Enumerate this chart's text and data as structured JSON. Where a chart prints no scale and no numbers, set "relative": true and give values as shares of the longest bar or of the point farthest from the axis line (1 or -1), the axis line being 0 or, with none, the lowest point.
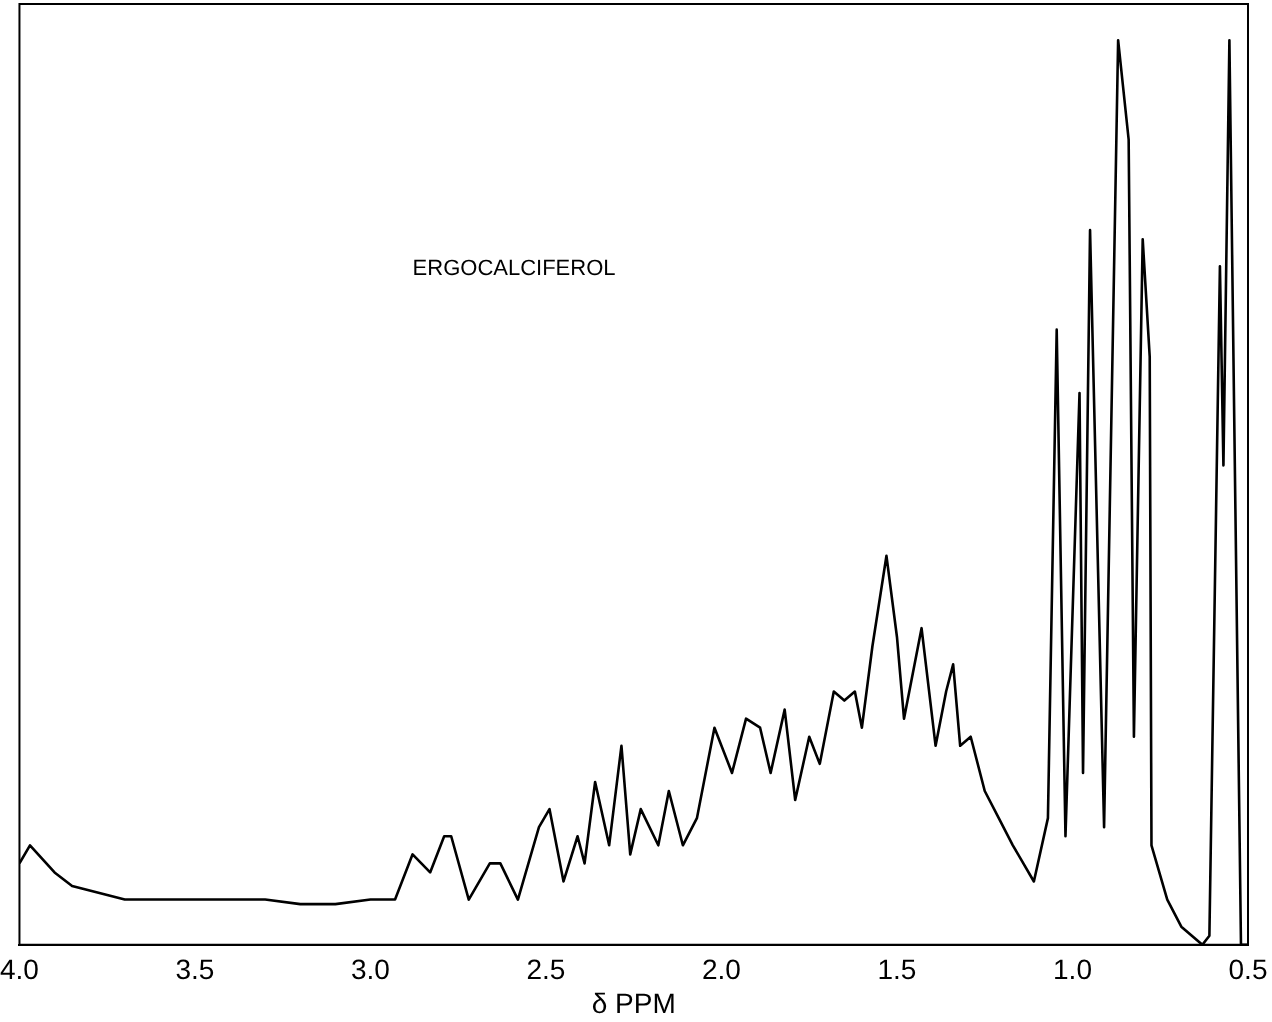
{
  "chart_data": {
    "type": "line",
    "relative": true,
    "xlabel": "δ PPM",
    "annotations": [
      "ERGOCALCIFEROL"
    ],
    "xlim": [
      4.0,
      0.5
    ],
    "xticks": [
      {
        "value": 4.0,
        "label": "4.0"
      },
      {
        "value": 3.5,
        "label": "3.5"
      },
      {
        "value": 3.0,
        "label": "3.0"
      },
      {
        "value": 2.5,
        "label": "2.5"
      },
      {
        "value": 2.0,
        "label": "2.0"
      },
      {
        "value": 1.5,
        "label": "1.5"
      },
      {
        "value": 1.0,
        "label": "1.0"
      },
      {
        "value": 0.5,
        "label": "0.5"
      }
    ],
    "tick_labels": "x",
    "grid": false,
    "legend": false,
    "marker": "none",
    "line_style": "solid",
    "series": [
      {
        "color": "#000000",
        "x": [
          4.0,
          3.97,
          3.9,
          3.85,
          3.8,
          3.7,
          3.6,
          3.5,
          3.4,
          3.3,
          3.2,
          3.1,
          3.0,
          2.93,
          2.88,
          2.83,
          2.79,
          2.77,
          2.72,
          2.66,
          2.63,
          2.58,
          2.52,
          2.49,
          2.45,
          2.41,
          2.39,
          2.36,
          2.32,
          2.285,
          2.26,
          2.23,
          2.18,
          2.15,
          2.11,
          2.07,
          2.02,
          1.97,
          1.93,
          1.89,
          1.86,
          1.82,
          1.79,
          1.75,
          1.72,
          1.68,
          1.65,
          1.62,
          1.6,
          1.57,
          1.53,
          1.5,
          1.48,
          1.43,
          1.39,
          1.36,
          1.34,
          1.32,
          1.29,
          1.25,
          1.21,
          1.17,
          1.11,
          1.07,
          1.045,
          1.02,
          0.98,
          0.97,
          0.95,
          0.91,
          0.87,
          0.84,
          0.825,
          0.8,
          0.78,
          0.775,
          0.73,
          0.69,
          0.63,
          0.61,
          0.58,
          0.57,
          0.553,
          0.52,
          0.5
        ],
        "values": [
          0.09,
          0.11,
          0.08,
          0.065,
          0.06,
          0.05,
          0.05,
          0.05,
          0.05,
          0.05,
          0.045,
          0.045,
          0.05,
          0.05,
          0.1,
          0.08,
          0.12,
          0.12,
          0.05,
          0.09,
          0.09,
          0.05,
          0.13,
          0.15,
          0.07,
          0.12,
          0.09,
          0.18,
          0.11,
          0.22,
          0.1,
          0.15,
          0.11,
          0.17,
          0.11,
          0.14,
          0.24,
          0.19,
          0.25,
          0.24,
          0.19,
          0.26,
          0.16,
          0.23,
          0.2,
          0.28,
          0.27,
          0.28,
          0.24,
          0.33,
          0.43,
          0.34,
          0.25,
          0.35,
          0.22,
          0.28,
          0.31,
          0.22,
          0.23,
          0.17,
          0.14,
          0.11,
          0.07,
          0.14,
          0.68,
          0.12,
          0.61,
          0.19,
          0.79,
          0.13,
          1.0,
          0.89,
          0.23,
          0.78,
          0.65,
          0.11,
          0.05,
          0.02,
          0.0,
          0.01,
          0.75,
          0.53,
          1.0,
          0.0,
          0.0
        ]
      }
    ]
  }
}
